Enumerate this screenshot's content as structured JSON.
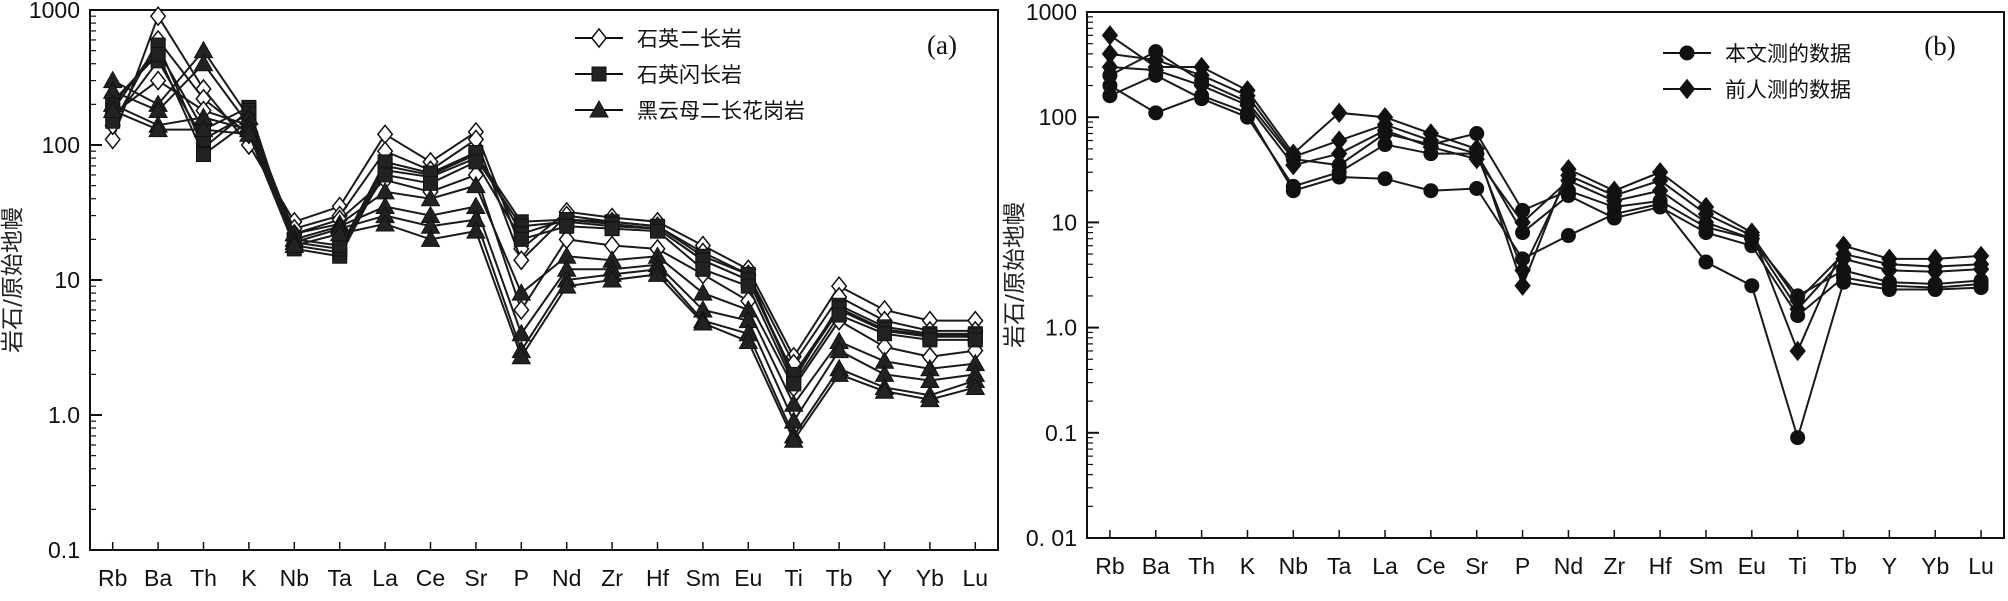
{
  "chart_data": [
    {
      "type": "line",
      "panel_label": "(a)",
      "ylabel": "岩石/原始地幔",
      "yscale": "log",
      "ylim": [
        0.1,
        1000
      ],
      "yticks": [
        0.1,
        1,
        10,
        100,
        1000
      ],
      "ytick_labels": [
        "0.1",
        "1.0",
        "10",
        "100",
        "1000"
      ],
      "categories": [
        "Rb",
        "Ba",
        "Th",
        "K",
        "Nb",
        "Ta",
        "La",
        "Ce",
        "Sr",
        "P",
        "Nd",
        "Zr",
        "Hf",
        "Sm",
        "Eu",
        "Ti",
        "Tb",
        "Y",
        "Yb",
        "Lu"
      ],
      "legend": {
        "position": "top-right",
        "entries": [
          "石英二长岩",
          "石英闪长岩",
          "黑云母二长花岗岩"
        ]
      },
      "series": [
        {
          "group": "石英二长岩",
          "marker": "diamond-open",
          "values": [
            110,
            900,
            260,
            100,
            27,
            35,
            120,
            75,
            125,
            17,
            32,
            29,
            27,
            18,
            12,
            2.7,
            9,
            6,
            5,
            5
          ]
        },
        {
          "group": "石英二长岩",
          "marker": "diamond-open",
          "values": [
            140,
            600,
            220,
            120,
            24,
            30,
            90,
            65,
            110,
            14,
            30,
            27,
            25,
            16,
            11,
            2.4,
            7.5,
            5,
            4.2,
            4.2
          ]
        },
        {
          "group": "石英二长岩",
          "marker": "diamond-open",
          "values": [
            170,
            300,
            180,
            140,
            22,
            28,
            55,
            45,
            60,
            6,
            20,
            18,
            17,
            11,
            7,
            1.6,
            5,
            3.2,
            2.7,
            3
          ]
        },
        {
          "group": "石英闪长岩",
          "marker": "square",
          "values": [
            200,
            500,
            130,
            190,
            18,
            16,
            70,
            60,
            85,
            27,
            28,
            27,
            25,
            15,
            11,
            1.8,
            6.5,
            4.5,
            4,
            4
          ]
        },
        {
          "group": "石英闪长岩",
          "marker": "square",
          "values": [
            180,
            550,
            95,
            180,
            17,
            15,
            65,
            58,
            80,
            25,
            27,
            25,
            24,
            14,
            10,
            1.9,
            6,
            4.2,
            3.8,
            3.8
          ]
        },
        {
          "group": "石英闪长岩",
          "marker": "square",
          "values": [
            150,
            420,
            110,
            170,
            19,
            17,
            75,
            62,
            88,
            22,
            28,
            26,
            24,
            14,
            10,
            2,
            6.2,
            4.3,
            3.9,
            3.9
          ]
        },
        {
          "group": "石英闪长岩",
          "marker": "square",
          "values": [
            210,
            470,
            85,
            150,
            20,
            18,
            60,
            52,
            75,
            20,
            25,
            24,
            23,
            12,
            9,
            1.7,
            5.5,
            4,
            3.6,
            3.6
          ]
        },
        {
          "group": "黑云母二长花岗岩",
          "marker": "triangle",
          "values": [
            300,
            200,
            500,
            160,
            22,
            26,
            45,
            40,
            50,
            8,
            15,
            14,
            15,
            8,
            6,
            1.2,
            3.5,
            2.5,
            2.2,
            2.4
          ]
        },
        {
          "group": "黑云母二长花岗岩",
          "marker": "triangle",
          "values": [
            250,
            180,
            400,
            140,
            20,
            25,
            35,
            30,
            35,
            4,
            12,
            12,
            13,
            6,
            5,
            0.9,
            3,
            2,
            1.8,
            2
          ]
        },
        {
          "group": "黑云母二长花岗岩",
          "marker": "triangle",
          "values": [
            200,
            140,
            160,
            130,
            19,
            24,
            30,
            25,
            28,
            3,
            10,
            11,
            12,
            5,
            4,
            0.7,
            2.2,
            1.6,
            1.4,
            1.8
          ]
        },
        {
          "group": "黑云母二长花岗岩",
          "marker": "triangle",
          "values": [
            180,
            130,
            130,
            120,
            18,
            22,
            26,
            20,
            23,
            2.7,
            9,
            10,
            11,
            4.8,
            3.5,
            0.65,
            2,
            1.5,
            1.3,
            1.6
          ]
        }
      ]
    },
    {
      "type": "line",
      "panel_label": "(b)",
      "ylabel": "岩石/原始地幔",
      "yscale": "log",
      "ylim": [
        0.01,
        1000
      ],
      "yticks": [
        0.01,
        0.1,
        1,
        10,
        100,
        1000
      ],
      "ytick_labels": [
        "0. 01",
        "0.1",
        "1.0",
        "10",
        "100",
        "1000"
      ],
      "categories": [
        "Rb",
        "Ba",
        "Th",
        "K",
        "Nb",
        "Ta",
        "La",
        "Ce",
        "Sr",
        "P",
        "Nd",
        "Zr",
        "Hf",
        "Sm",
        "Eu",
        "Ti",
        "Tb",
        "Y",
        "Yb",
        "Lu"
      ],
      "legend": {
        "position": "top-right",
        "entries": [
          "本文测的数据",
          "前人测的数据"
        ]
      },
      "series": [
        {
          "group": "本文测的数据",
          "marker": "circle",
          "values": [
            200,
            110,
            160,
            110,
            20,
            27,
            26,
            20,
            21,
            4.5,
            7.5,
            12,
            15,
            4.2,
            2.5,
            0.09,
            2.7,
            2.3,
            2.3,
            2.4
          ]
        },
        {
          "group": "本文测的数据",
          "marker": "circle",
          "values": [
            250,
            420,
            220,
            140,
            40,
            35,
            70,
            55,
            70,
            13,
            20,
            14,
            16,
            9,
            7,
            2,
            3.5,
            2.7,
            2.6,
            2.8
          ]
        },
        {
          "group": "本文测的数据",
          "marker": "circle",
          "values": [
            160,
            250,
            150,
            100,
            22,
            30,
            55,
            45,
            45,
            8,
            18,
            11,
            14,
            8,
            6,
            1.3,
            3,
            2.5,
            2.4,
            2.6
          ]
        },
        {
          "group": "前人测的数据",
          "marker": "diamond",
          "values": [
            600,
            300,
            300,
            180,
            45,
            110,
            100,
            70,
            50,
            2.5,
            32,
            20,
            30,
            14,
            8,
            0.6,
            6,
            4.5,
            4.5,
            4.8
          ]
        },
        {
          "group": "前人测的数据",
          "marker": "diamond",
          "values": [
            400,
            350,
            250,
            160,
            42,
            60,
            85,
            60,
            45,
            3.5,
            28,
            18,
            25,
            12,
            7.5,
            1.8,
            5,
            4,
            3.8,
            4
          ]
        },
        {
          "group": "前人测的数据",
          "marker": "diamond",
          "values": [
            300,
            280,
            200,
            130,
            35,
            45,
            75,
            52,
            40,
            10,
            25,
            16,
            20,
            10,
            7,
            1.5,
            4.5,
            3.5,
            3.4,
            3.6
          ]
        }
      ]
    }
  ]
}
